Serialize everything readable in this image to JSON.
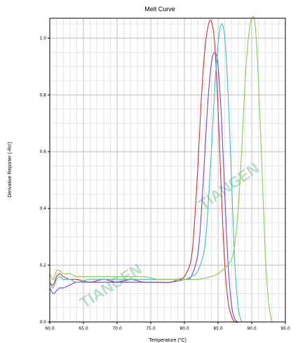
{
  "chart_data": {
    "type": "line",
    "title": "Melt Curve",
    "xlabel": "Temperature (°C)",
    "ylabel": "Derivative Reporter (-Rn')",
    "xlim": [
      60,
      95
    ],
    "ylim": [
      0,
      1.07
    ],
    "x_ticks": [
      60,
      65,
      70,
      75,
      80,
      85,
      90,
      95
    ],
    "x_tick_labels": [
      "60.0",
      "65.0",
      "70.0",
      "75.0",
      "80.0",
      "85.0",
      "90.0",
      "95.0"
    ],
    "y_ticks": [
      0,
      0.2,
      0.4,
      0.6,
      0.8,
      1.0
    ],
    "y_tick_labels": [
      "0.0",
      "0.2",
      "0.4",
      "0.6",
      "0.8",
      "1.0"
    ],
    "grid": true,
    "series": [
      {
        "color": "#cc3333",
        "x": [
          60,
          60.5,
          61,
          61.5,
          62,
          63,
          64,
          66,
          68,
          70,
          72,
          74,
          76,
          78,
          79,
          80,
          81,
          81.5,
          82,
          82.5,
          83,
          83.5,
          84,
          84.5,
          85,
          85.5,
          86,
          86.5,
          87,
          87.5,
          88
        ],
        "y": [
          0.14,
          0.13,
          0.16,
          0.17,
          0.16,
          0.15,
          0.15,
          0.14,
          0.15,
          0.14,
          0.15,
          0.14,
          0.14,
          0.14,
          0.15,
          0.16,
          0.22,
          0.35,
          0.55,
          0.78,
          0.95,
          1.04,
          1.06,
          0.98,
          0.75,
          0.45,
          0.2,
          0.07,
          0.02,
          0.0,
          0.0
        ]
      },
      {
        "color": "#7744cc",
        "x": [
          60,
          60.5,
          61,
          61.5,
          62,
          63,
          64,
          66,
          68,
          70,
          72,
          74,
          76,
          78,
          80,
          81,
          82,
          82.5,
          83,
          83.5,
          84,
          84.5,
          85,
          85.5,
          86,
          86.5,
          87,
          87.5,
          88
        ],
        "y": [
          0.12,
          0.1,
          0.11,
          0.12,
          0.12,
          0.13,
          0.14,
          0.14,
          0.14,
          0.14,
          0.14,
          0.14,
          0.14,
          0.14,
          0.15,
          0.16,
          0.24,
          0.38,
          0.58,
          0.78,
          0.91,
          0.95,
          0.9,
          0.72,
          0.45,
          0.2,
          0.06,
          0.01,
          0.0
        ]
      },
      {
        "color": "#44bbcc",
        "x": [
          60,
          60.5,
          61,
          61.5,
          62,
          63,
          64,
          66,
          68,
          70,
          72,
          74,
          76,
          78,
          80,
          81,
          82,
          83,
          83.5,
          84,
          84.5,
          85,
          85.5,
          86,
          86.5,
          87,
          87.5,
          88,
          88.5
        ],
        "y": [
          0.14,
          0.12,
          0.15,
          0.16,
          0.15,
          0.15,
          0.14,
          0.15,
          0.15,
          0.15,
          0.15,
          0.15,
          0.15,
          0.15,
          0.15,
          0.16,
          0.18,
          0.26,
          0.4,
          0.6,
          0.82,
          0.98,
          1.05,
          1.0,
          0.8,
          0.5,
          0.2,
          0.05,
          0.0
        ]
      },
      {
        "color": "#88cc55",
        "x": [
          60,
          60.5,
          61,
          61.5,
          62,
          63,
          64,
          66,
          68,
          70,
          72,
          74,
          76,
          78,
          80,
          82,
          84,
          85,
          86,
          87,
          87.5,
          88,
          88.5,
          89,
          89.5,
          90,
          90.5,
          91,
          91.5,
          92,
          92.5,
          93
        ],
        "y": [
          0.17,
          0.15,
          0.18,
          0.18,
          0.17,
          0.17,
          0.16,
          0.16,
          0.16,
          0.16,
          0.16,
          0.16,
          0.15,
          0.15,
          0.15,
          0.15,
          0.16,
          0.17,
          0.19,
          0.22,
          0.28,
          0.4,
          0.6,
          0.84,
          1.0,
          1.07,
          1.05,
          0.85,
          0.55,
          0.25,
          0.07,
          0.0
        ]
      }
    ],
    "watermark": "TIANGEN"
  }
}
